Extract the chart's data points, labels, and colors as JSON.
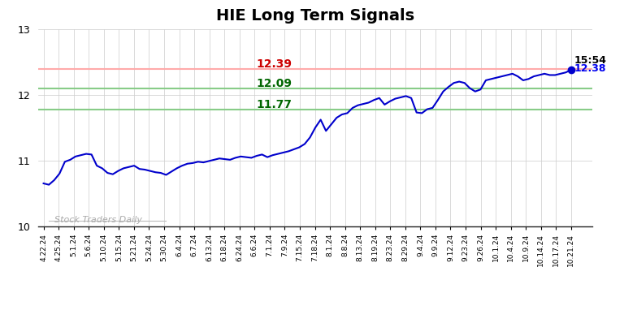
{
  "title": "HIE Long Term Signals",
  "title_fontsize": 14,
  "title_fontweight": "bold",
  "background_color": "#ffffff",
  "line_color": "#0000cc",
  "line_width": 1.5,
  "ylim": [
    10,
    13
  ],
  "yticks": [
    10,
    11,
    12,
    13
  ],
  "hline_red": 12.39,
  "hline_red_color": "#ffaaaa",
  "hline_green1": 12.09,
  "hline_green1_color": "#88cc88",
  "hline_green2": 11.77,
  "hline_green2_color": "#88cc88",
  "label_12_39": "12.39",
  "label_12_09": "12.09",
  "label_11_77": "11.77",
  "label_color_red": "#cc0000",
  "label_color_green": "#006600",
  "annotation_time": "15:54",
  "annotation_price": "12.38",
  "annotation_price_color": "#0000ee",
  "annotation_time_color": "#000000",
  "watermark": "Stock Traders Daily",
  "watermark_color": "#aaaaaa",
  "dot_color": "#0000cc",
  "dot_size": 6,
  "x_labels": [
    "4.22.24",
    "4.25.24",
    "5.1.24",
    "5.6.24",
    "5.10.24",
    "5.15.24",
    "5.21.24",
    "5.24.24",
    "5.30.24",
    "6.4.24",
    "6.7.24",
    "6.13.24",
    "6.18.24",
    "6.24.24",
    "6.6.24",
    "7.1.24",
    "7.9.24",
    "7.15.24",
    "7.18.24",
    "8.1.24",
    "8.8.24",
    "8.13.24",
    "8.19.24",
    "8.23.24",
    "8.29.24",
    "9.4.24",
    "9.9.24",
    "9.12.24",
    "9.23.24",
    "9.26.24",
    "10.1.24",
    "10.4.24",
    "10.9.24",
    "10.14.24",
    "10.17.24",
    "10.21.24"
  ],
  "prices": [
    10.65,
    10.63,
    10.7,
    10.8,
    10.98,
    11.01,
    11.06,
    11.08,
    11.1,
    11.09,
    10.92,
    10.88,
    10.81,
    10.79,
    10.84,
    10.88,
    10.9,
    10.92,
    10.87,
    10.86,
    10.84,
    10.82,
    10.81,
    10.78,
    10.83,
    10.88,
    10.92,
    10.95,
    10.96,
    10.98,
    10.97,
    10.99,
    11.01,
    11.03,
    11.02,
    11.01,
    11.04,
    11.06,
    11.05,
    11.04,
    11.07,
    11.09,
    11.05,
    11.08,
    11.1,
    11.12,
    11.14,
    11.17,
    11.2,
    11.25,
    11.35,
    11.5,
    11.62,
    11.45,
    11.55,
    11.65,
    11.7,
    11.72,
    11.8,
    11.84,
    11.86,
    11.88,
    11.92,
    11.95,
    11.85,
    11.9,
    11.94,
    11.96,
    11.98,
    11.95,
    11.73,
    11.72,
    11.78,
    11.8,
    11.92,
    12.05,
    12.12,
    12.18,
    12.2,
    12.18,
    12.1,
    12.05,
    12.08,
    12.22,
    12.24,
    12.26,
    12.28,
    12.3,
    12.32,
    12.28,
    12.22,
    12.24,
    12.28,
    12.3,
    12.32,
    12.3,
    12.3,
    12.32,
    12.34,
    12.38
  ]
}
